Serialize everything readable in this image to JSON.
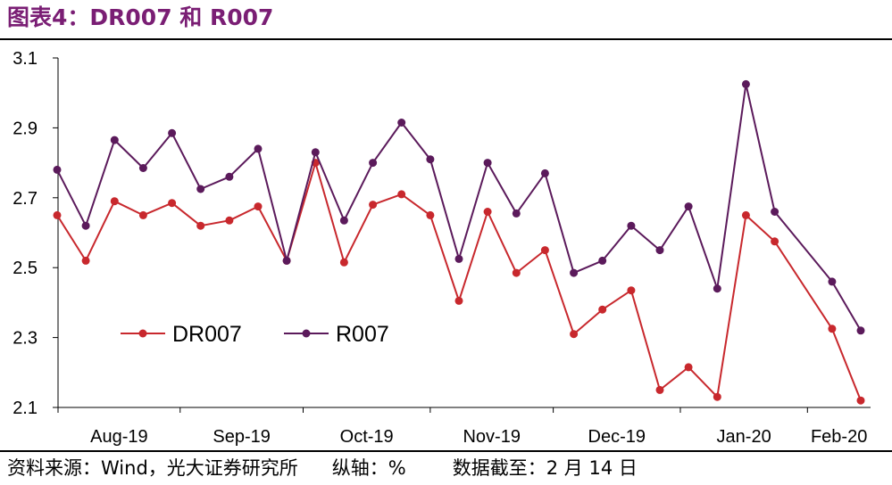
{
  "header": {
    "title": "图表4：DR007 和 R007"
  },
  "footer": {
    "source": "资料来源：Wind，光大证券研究所",
    "axis_note": "纵轴：%",
    "date_note": "数据截至：2 月 14 日"
  },
  "chart_data": {
    "type": "line",
    "title": "",
    "xlabel": "",
    "ylabel": "",
    "ylim": [
      2.1,
      3.1
    ],
    "yticks": [
      "2.1",
      "2.3",
      "2.5",
      "2.7",
      "2.9",
      "3.1"
    ],
    "x_tick_labels": [
      "Aug-19",
      "Sep-19",
      "Oct-19",
      "Nov-19",
      "Dec-19",
      "Jan-20",
      "Feb-20"
    ],
    "x": [
      "2019-08-02",
      "2019-08-09",
      "2019-08-16",
      "2019-08-23",
      "2019-08-30",
      "2019-09-06",
      "2019-09-13",
      "2019-09-20",
      "2019-09-27",
      "2019-10-04",
      "2019-10-11",
      "2019-10-18",
      "2019-10-25",
      "2019-11-01",
      "2019-11-08",
      "2019-11-15",
      "2019-11-22",
      "2019-11-29",
      "2019-12-06",
      "2019-12-13",
      "2019-12-20",
      "2019-12-27",
      "2020-01-03",
      "2020-01-10",
      "2020-01-17",
      "2020-01-24",
      "2020-01-31",
      "2020-02-07",
      "2020-02-14"
    ],
    "legend_position": "lower-left",
    "grid": false,
    "series": [
      {
        "name": "DR007",
        "color": "#c8282d",
        "points": [
          [
            "2019-08-02",
            2.65
          ],
          [
            "2019-08-09",
            2.52
          ],
          [
            "2019-08-16",
            2.69
          ],
          [
            "2019-08-23",
            2.65
          ],
          [
            "2019-08-30",
            2.685
          ],
          [
            "2019-09-06",
            2.62
          ],
          [
            "2019-09-13",
            2.635
          ],
          [
            "2019-09-20",
            2.675
          ],
          [
            "2019-09-27",
            2.52
          ],
          [
            "2019-10-04",
            2.8
          ],
          [
            "2019-10-11",
            2.515
          ],
          [
            "2019-10-18",
            2.68
          ],
          [
            "2019-10-25",
            2.71
          ],
          [
            "2019-11-01",
            2.65
          ],
          [
            "2019-11-08",
            2.405
          ],
          [
            "2019-11-15",
            2.66
          ],
          [
            "2019-11-22",
            2.485
          ],
          [
            "2019-11-29",
            2.55
          ],
          [
            "2019-12-06",
            2.31
          ],
          [
            "2019-12-13",
            2.38
          ],
          [
            "2019-12-20",
            2.435
          ],
          [
            "2019-12-27",
            2.15
          ],
          [
            "2020-01-03",
            2.215
          ],
          [
            "2020-01-10",
            2.13
          ],
          [
            "2020-01-17",
            2.65
          ],
          [
            "2020-01-24",
            2.575
          ],
          [
            "2020-02-07",
            2.325
          ],
          [
            "2020-02-14",
            2.12
          ]
        ]
      },
      {
        "name": "R007",
        "color": "#5b1a5b",
        "points": [
          [
            "2019-08-02",
            2.78
          ],
          [
            "2019-08-09",
            2.62
          ],
          [
            "2019-08-16",
            2.865
          ],
          [
            "2019-08-23",
            2.785
          ],
          [
            "2019-08-30",
            2.885
          ],
          [
            "2019-09-06",
            2.725
          ],
          [
            "2019-09-13",
            2.76
          ],
          [
            "2019-09-20",
            2.84
          ],
          [
            "2019-09-27",
            2.52
          ],
          [
            "2019-10-04",
            2.83
          ],
          [
            "2019-10-11",
            2.635
          ],
          [
            "2019-10-18",
            2.8
          ],
          [
            "2019-10-25",
            2.915
          ],
          [
            "2019-11-01",
            2.81
          ],
          [
            "2019-11-08",
            2.525
          ],
          [
            "2019-11-15",
            2.8
          ],
          [
            "2019-11-22",
            2.655
          ],
          [
            "2019-11-29",
            2.77
          ],
          [
            "2019-12-06",
            2.485
          ],
          [
            "2019-12-13",
            2.52
          ],
          [
            "2019-12-20",
            2.62
          ],
          [
            "2019-12-27",
            2.55
          ],
          [
            "2020-01-03",
            2.675
          ],
          [
            "2020-01-10",
            2.44
          ],
          [
            "2020-01-17",
            3.025
          ],
          [
            "2020-01-24",
            2.66
          ],
          [
            "2020-02-07",
            2.46
          ],
          [
            "2020-02-14",
            2.32
          ]
        ]
      }
    ]
  }
}
